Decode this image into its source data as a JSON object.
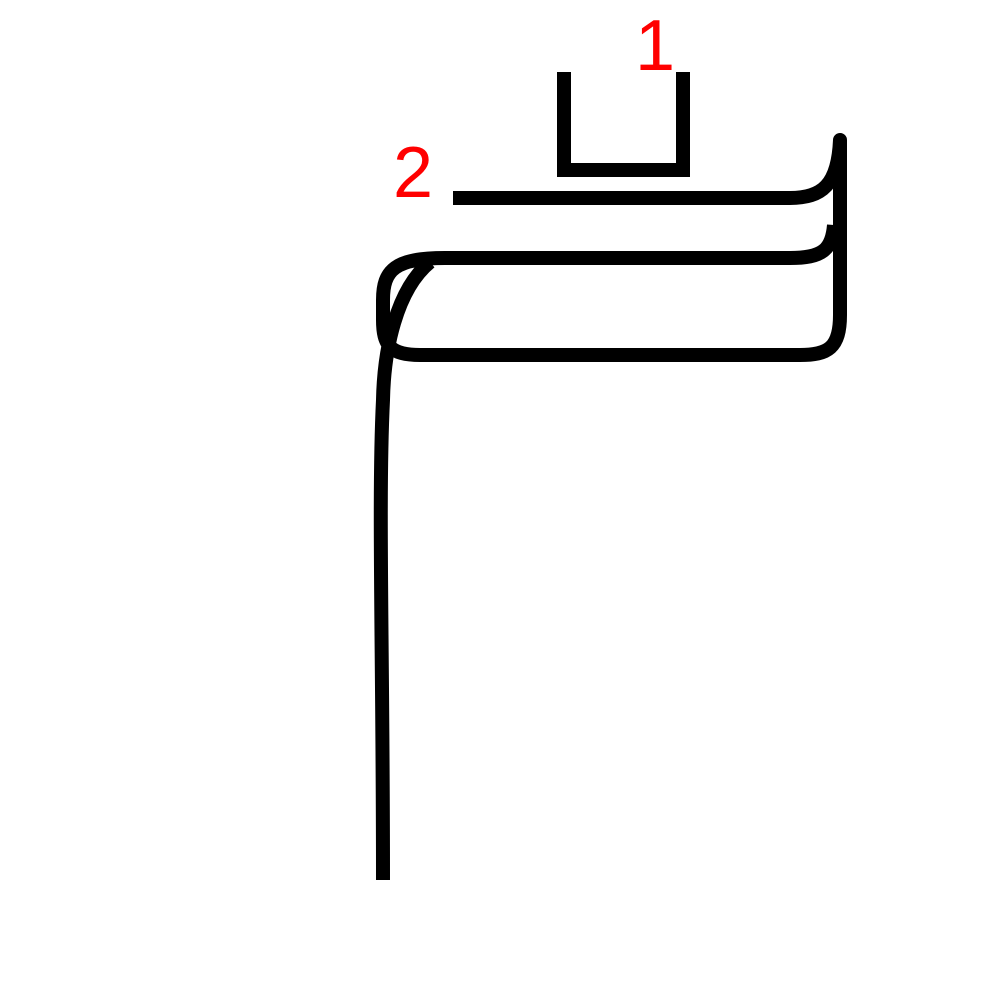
{
  "stroke_color": "#000000",
  "label_color": "#ff0000",
  "background_color": "#ffffff",
  "stroke_numbers": {
    "first": "1",
    "second": "2"
  },
  "strokes": [
    {
      "number": "1",
      "icon": "bracket-shape-icon"
    },
    {
      "number": "2",
      "icon": "folded-hook-shape-icon"
    }
  ]
}
